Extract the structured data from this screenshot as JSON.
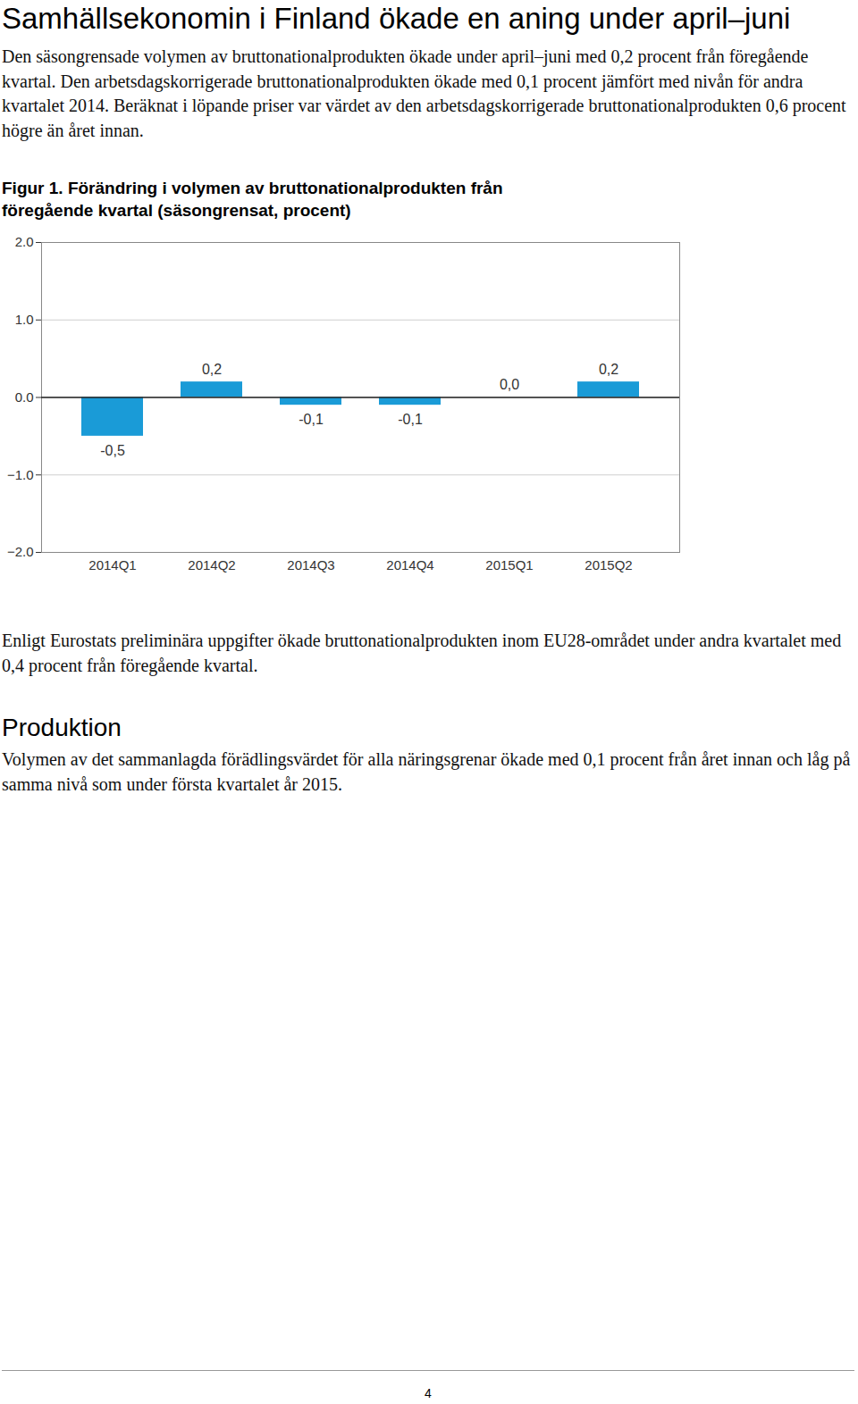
{
  "document": {
    "title": "Samhällsekonomin i Finland ökade en aning under april–juni",
    "intro": "Den säsongrensade volymen av bruttonationalprodukten ökade under april–juni med 0,2 procent från föregående kvartal. Den arbetsdagskorrigerade bruttonationalprodukten ökade med 0,1 procent jämfört med nivån för andra kvartalet 2014. Beräknat i löpande priser var värdet av den arbetsdagskorrigerade bruttonationalprodukten 0,6 procent högre än året innan.",
    "after_chart": "Enligt Eurostats preliminära uppgifter ökade bruttonationalprodukten inom EU28-området under andra kvartalet med 0,4 procent från föregående kvartal.",
    "section_heading": "Produktion",
    "section_text": "Volymen av det sammanlagda förädlingsvärdet för alla näringsgrenar ökade med 0,1 procent från året innan och låg på samma nivå som under första kvartalet år 2015.",
    "page_number": "4"
  },
  "chart_data": {
    "type": "bar",
    "title": "Figur 1. Förändring i volymen av bruttonationalprodukten från föregående kvartal (säsongrensat, procent)",
    "categories": [
      "2014Q1",
      "2014Q2",
      "2014Q3",
      "2014Q4",
      "2015Q1",
      "2015Q2"
    ],
    "values": [
      -0.5,
      0.2,
      -0.1,
      -0.1,
      0.0,
      0.2
    ],
    "value_labels": [
      "-0,5",
      "0,2",
      "-0,1",
      "-0,1",
      "0,0",
      "0,2"
    ],
    "color": "#1a9bd7",
    "ylim": [
      -2,
      2
    ],
    "yticks": [
      -2,
      -1,
      0,
      1,
      2
    ],
    "grid": true,
    "data_labels": true
  }
}
